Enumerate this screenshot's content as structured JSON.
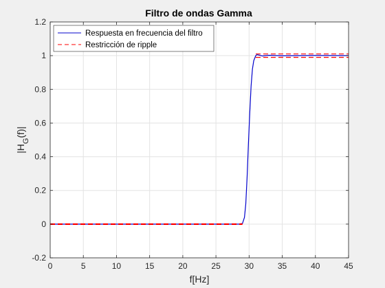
{
  "chart_data": {
    "type": "line",
    "title": "Filtro de ondas Gamma",
    "xlabel": "f[Hz]",
    "ylabel": {
      "prefix": "|H",
      "sub": "G",
      "suffix": "(f)|"
    },
    "xlim": [
      0,
      45
    ],
    "ylim": [
      -0.2,
      1.2
    ],
    "xticks": [
      0,
      5,
      10,
      15,
      20,
      25,
      30,
      35,
      40,
      45
    ],
    "yticks": [
      -0.2,
      0,
      0.2,
      0.4,
      0.6,
      0.8,
      1,
      1.2
    ],
    "grid": true,
    "legend_position": "top-left",
    "series": [
      {
        "name": "Respuesta en frecuencia del filtro",
        "color": "#0000cc",
        "style": "solid",
        "x": [
          0,
          5,
          10,
          15,
          20,
          25,
          28.5,
          29,
          29.3,
          29.5,
          29.7,
          29.9,
          30.1,
          30.3,
          30.5,
          30.7,
          30.9,
          31,
          31.2,
          31.5,
          32,
          33,
          35,
          40,
          45
        ],
        "y": [
          0,
          0,
          0,
          0,
          0,
          0,
          0,
          0.004,
          0.04,
          0.12,
          0.28,
          0.48,
          0.66,
          0.82,
          0.92,
          0.97,
          0.99,
          1,
          1.006,
          1.003,
          0.998,
          1.002,
          0.999,
          1.001,
          1
        ]
      },
      {
        "name": "Restricción de ripple",
        "color": "#ff0000",
        "style": "dashed",
        "segments": [
          {
            "x": [
              0,
              29
            ],
            "y": [
              0.002,
              0.002
            ]
          },
          {
            "x": [
              0,
              29
            ],
            "y": [
              -0.002,
              -0.002
            ]
          },
          {
            "x": [
              31,
              45
            ],
            "y": [
              1.01,
              1.01
            ]
          },
          {
            "x": [
              31,
              45
            ],
            "y": [
              0.99,
              0.99
            ]
          }
        ]
      }
    ]
  }
}
